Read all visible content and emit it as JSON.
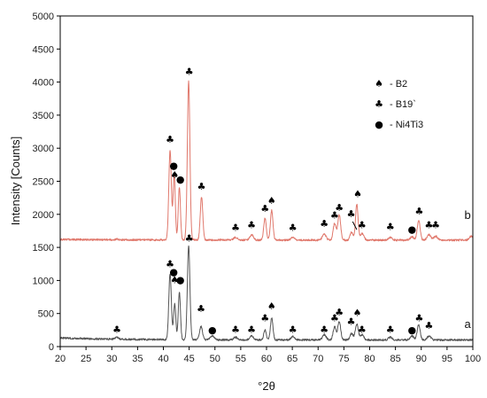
{
  "chart_data": {
    "type": "line",
    "xlabel": "°2θ",
    "ylabel": "Intensity [Counts]",
    "xlim": [
      20,
      100
    ],
    "ylim": [
      0,
      5000
    ],
    "xticks": [
      20,
      25,
      30,
      35,
      40,
      45,
      50,
      55,
      60,
      65,
      70,
      75,
      80,
      85,
      90,
      95,
      100
    ],
    "yticks": [
      0,
      500,
      1000,
      1500,
      2000,
      2500,
      3000,
      3500,
      4000,
      4500,
      5000
    ],
    "grid": false,
    "legend_position": "top-right",
    "legend": [
      {
        "symbol": "♠",
        "text": "- B2",
        "marker_name": "spade-marker"
      },
      {
        "symbol": "♣",
        "text": "- B19`",
        "marker_name": "club-marker"
      },
      {
        "symbol": "●",
        "text": "- Ni4Ti3",
        "marker_name": "dot-marker"
      }
    ],
    "series": [
      {
        "name": "a",
        "color": "#555555",
        "baseline": 100,
        "peaks": [
          [
            31.0,
            30,
            0.4
          ],
          [
            41.3,
            1000,
            0.35
          ],
          [
            42.2,
            550,
            0.3
          ],
          [
            43.1,
            720,
            0.3
          ],
          [
            44.9,
            1420,
            0.35
          ],
          [
            47.3,
            200,
            0.4
          ],
          [
            49.5,
            60,
            0.5
          ],
          [
            54.0,
            40,
            0.5
          ],
          [
            57.1,
            60,
            0.5
          ],
          [
            59.7,
            150,
            0.35
          ],
          [
            61.0,
            330,
            0.35
          ],
          [
            65.1,
            50,
            0.5
          ],
          [
            71.2,
            80,
            0.5
          ],
          [
            73.2,
            200,
            0.4
          ],
          [
            74.1,
            280,
            0.4
          ],
          [
            76.5,
            100,
            0.4
          ],
          [
            77.5,
            240,
            0.4
          ],
          [
            78.5,
            80,
            0.5
          ],
          [
            84.0,
            40,
            0.5
          ],
          [
            88.2,
            60,
            0.5
          ],
          [
            89.5,
            230,
            0.4
          ],
          [
            91.5,
            60,
            0.5
          ]
        ],
        "label_at": [
          99,
          280
        ]
      },
      {
        "name": "b",
        "color": "#e0786c",
        "baseline": 1610,
        "peaks": [
          [
            31.0,
            10,
            0.5
          ],
          [
            41.3,
            1350,
            0.35
          ],
          [
            42.1,
            1000,
            0.3
          ],
          [
            43.1,
            800,
            0.3
          ],
          [
            44.9,
            2400,
            0.35
          ],
          [
            47.4,
            650,
            0.35
          ],
          [
            54.0,
            40,
            0.5
          ],
          [
            57.1,
            80,
            0.5
          ],
          [
            59.7,
            330,
            0.35
          ],
          [
            61.0,
            450,
            0.35
          ],
          [
            65.1,
            40,
            0.5
          ],
          [
            71.2,
            90,
            0.5
          ],
          [
            73.2,
            250,
            0.4
          ],
          [
            74.1,
            380,
            0.4
          ],
          [
            76.5,
            120,
            0.4
          ],
          [
            77.5,
            540,
            0.35
          ],
          [
            78.5,
            100,
            0.5
          ],
          [
            84.0,
            40,
            0.5
          ],
          [
            88.2,
            50,
            0.5
          ],
          [
            89.5,
            300,
            0.4
          ],
          [
            91.5,
            80,
            0.5
          ],
          [
            92.8,
            60,
            0.5
          ],
          [
            99.7,
            60,
            0.5
          ]
        ],
        "label_at": [
          99,
          1930
        ]
      }
    ],
    "annotations": [
      {
        "s": "♣",
        "x": 31.0,
        "y": 210
      },
      {
        "s": "♣",
        "x": 41.3,
        "y": 1200
      },
      {
        "s": "●",
        "x": 42.0,
        "y": 1080
      },
      {
        "s": "♠",
        "x": 42.2,
        "y": 960
      },
      {
        "s": "●",
        "x": 43.3,
        "y": 960
      },
      {
        "s": "♣",
        "x": 45.0,
        "y": 1590
      },
      {
        "s": "♣",
        "x": 47.3,
        "y": 520
      },
      {
        "s": "●",
        "x": 49.5,
        "y": 200
      },
      {
        "s": "♣",
        "x": 54.0,
        "y": 210
      },
      {
        "s": "♣",
        "x": 57.1,
        "y": 210
      },
      {
        "s": "♣",
        "x": 59.7,
        "y": 380
      },
      {
        "s": "♠",
        "x": 61.0,
        "y": 560
      },
      {
        "s": "♣",
        "x": 65.1,
        "y": 210
      },
      {
        "s": "♣",
        "x": 71.2,
        "y": 210
      },
      {
        "s": "♣",
        "x": 73.2,
        "y": 380
      },
      {
        "s": "♣",
        "x": 74.1,
        "y": 470
      },
      {
        "s": "♣",
        "x": 76.4,
        "y": 330
      },
      {
        "s": "♠",
        "x": 77.6,
        "y": 460
      },
      {
        "s": "♣",
        "x": 78.5,
        "y": 210
      },
      {
        "s": "♣",
        "x": 84.0,
        "y": 210
      },
      {
        "s": "●",
        "x": 88.2,
        "y": 200
      },
      {
        "s": "♣",
        "x": 89.6,
        "y": 380
      },
      {
        "s": "♣",
        "x": 91.5,
        "y": 270
      },
      {
        "s": "♣",
        "x": 41.3,
        "y": 3080
      },
      {
        "s": "●",
        "x": 42.0,
        "y": 2690
      },
      {
        "s": "♠",
        "x": 42.2,
        "y": 2550
      },
      {
        "s": "●",
        "x": 43.3,
        "y": 2480
      },
      {
        "s": "♣",
        "x": 45.0,
        "y": 4110
      },
      {
        "s": "♣",
        "x": 47.4,
        "y": 2370
      },
      {
        "s": "♣",
        "x": 54.0,
        "y": 1750
      },
      {
        "s": "♣",
        "x": 57.1,
        "y": 1790
      },
      {
        "s": "♣",
        "x": 59.7,
        "y": 2040
      },
      {
        "s": "♠",
        "x": 61.0,
        "y": 2160
      },
      {
        "s": "♣",
        "x": 65.1,
        "y": 1750
      },
      {
        "s": "♣",
        "x": 71.2,
        "y": 1810
      },
      {
        "s": "♣",
        "x": 73.2,
        "y": 1940
      },
      {
        "s": "♣",
        "x": 74.1,
        "y": 2050
      },
      {
        "s": "♣",
        "x": 76.4,
        "y": 1960
      },
      {
        "s": "♠",
        "x": 77.7,
        "y": 2260
      },
      {
        "s": "♣",
        "x": 78.5,
        "y": 1790
      },
      {
        "s": "♣",
        "x": 84.0,
        "y": 1760
      },
      {
        "s": "●",
        "x": 88.2,
        "y": 1720
      },
      {
        "s": "♣",
        "x": 89.6,
        "y": 2000
      },
      {
        "s": "♣",
        "x": 91.5,
        "y": 1790
      },
      {
        "s": "♣",
        "x": 92.8,
        "y": 1790
      }
    ]
  }
}
